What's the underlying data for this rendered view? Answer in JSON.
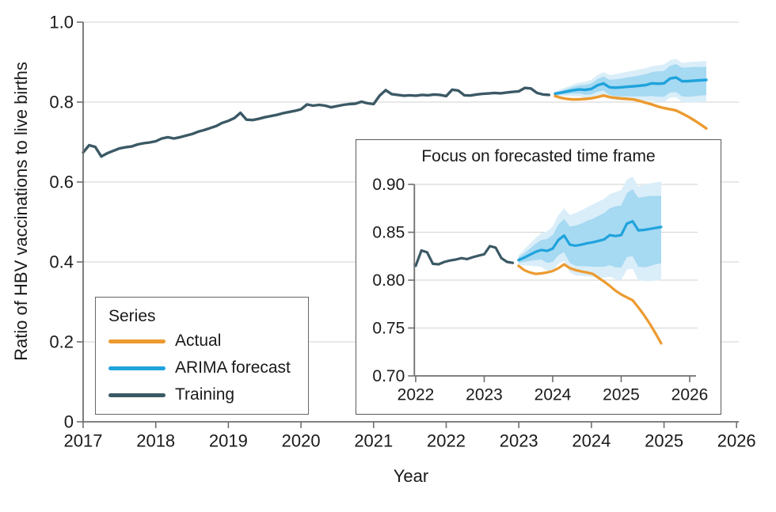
{
  "figure": {
    "ylabel": "Ratio of HBV vaccinations to live births",
    "xlabel": "Year"
  },
  "legend": {
    "title": "Series",
    "items": [
      {
        "label": "Actual",
        "color_key": "actual"
      },
      {
        "label": "ARIMA forecast",
        "color_key": "forecast"
      },
      {
        "label": "Training",
        "color_key": "training"
      }
    ]
  },
  "colors": {
    "training": "#3b5965",
    "forecast": "#1fa3dc",
    "actual": "#ec9a2f",
    "band80": "#a6d9f2",
    "band95": "#daeef9",
    "grid": "#d9d9d9",
    "axis": "#6f6f6f",
    "text": "#1a1a1a"
  },
  "chart_data": {
    "type": "line",
    "xlabel": "Year",
    "ylabel": "Ratio of HBV vaccinations to live births",
    "grid": "horizontal",
    "legend_position": "lower-left box",
    "main_view": {
      "xlim": [
        2017,
        2026.03
      ],
      "ylim": [
        0,
        1.0
      ],
      "xticks": [
        2017,
        2018,
        2019,
        2020,
        2021,
        2022,
        2023,
        2024,
        2025,
        2026
      ],
      "yticks": [
        0,
        0.2,
        0.4,
        0.6,
        0.8,
        1.0
      ],
      "ytick_labels": [
        "0",
        "0.2",
        "0.4",
        "0.6",
        "0.8",
        "1.0"
      ]
    },
    "inset_view": {
      "title": "Focus on forecasted time frame",
      "xlim": [
        2021.98,
        2026.15
      ],
      "ylim": [
        0.7,
        0.9
      ],
      "xticks": [
        2022,
        2023,
        2024,
        2025,
        2026
      ],
      "yticks": [
        0.7,
        0.75,
        0.8,
        0.85,
        0.9
      ],
      "ytick_labels": [
        "0.70",
        "0.75",
        "0.80",
        "0.85",
        "0.90"
      ]
    },
    "series": [
      {
        "name": "Training",
        "color_key": "training",
        "x_start": 2017.0,
        "x_step": 0.0833333,
        "y": [
          0.674,
          0.692,
          0.688,
          0.664,
          0.672,
          0.678,
          0.684,
          0.687,
          0.689,
          0.694,
          0.697,
          0.699,
          0.702,
          0.709,
          0.712,
          0.709,
          0.712,
          0.716,
          0.72,
          0.726,
          0.73,
          0.735,
          0.74,
          0.748,
          0.753,
          0.76,
          0.773,
          0.756,
          0.755,
          0.758,
          0.762,
          0.765,
          0.768,
          0.772,
          0.775,
          0.778,
          0.782,
          0.794,
          0.791,
          0.793,
          0.791,
          0.787,
          0.79,
          0.793,
          0.795,
          0.796,
          0.801,
          0.797,
          0.795,
          0.816,
          0.83,
          0.82,
          0.818,
          0.816,
          0.817,
          0.816,
          0.818,
          0.817,
          0.819,
          0.818,
          0.815,
          0.831,
          0.829,
          0.817,
          0.8165,
          0.819,
          0.8205,
          0.8215,
          0.823,
          0.822,
          0.824,
          0.8255,
          0.827,
          0.8355,
          0.834,
          0.823,
          0.819,
          0.818
        ]
      },
      {
        "name": "ARIMA forecast",
        "color_key": "forecast",
        "x_start": 2023.5,
        "x_step": 0.0833333,
        "y": [
          0.821,
          0.8235,
          0.8265,
          0.8295,
          0.8315,
          0.8305,
          0.833,
          0.842,
          0.8465,
          0.837,
          0.836,
          0.837,
          0.8385,
          0.8395,
          0.841,
          0.8425,
          0.847,
          0.846,
          0.847,
          0.859,
          0.8615,
          0.852,
          0.8525,
          0.8535,
          0.8545,
          0.8555
        ]
      },
      {
        "name": "Actual",
        "color_key": "actual",
        "x_start": 2023.5,
        "x_step": 0.0833333,
        "y": [
          0.815,
          0.8105,
          0.808,
          0.8065,
          0.807,
          0.808,
          0.8095,
          0.8125,
          0.8165,
          0.8125,
          0.8105,
          0.809,
          0.808,
          0.8065,
          0.8025,
          0.7985,
          0.794,
          0.789,
          0.785,
          0.782,
          0.779,
          0.7715,
          0.7635,
          0.7545,
          0.7445,
          0.734
        ]
      }
    ],
    "bands": [
      {
        "key": "ci_outer",
        "color_key": "band95",
        "x_start": 2023.5,
        "x_step": 0.0833333,
        "hi": [
          0.826,
          0.832,
          0.838,
          0.844,
          0.849,
          0.851,
          0.856,
          0.868,
          0.875,
          0.868,
          0.87,
          0.873,
          0.876,
          0.879,
          0.882,
          0.885,
          0.89,
          0.892,
          0.894,
          0.905,
          0.908,
          0.898,
          0.9,
          0.901,
          0.902,
          0.903
        ],
        "lo": [
          0.816,
          0.8155,
          0.815,
          0.8145,
          0.814,
          0.81,
          0.81,
          0.817,
          0.82,
          0.808,
          0.805,
          0.8045,
          0.804,
          0.8035,
          0.803,
          0.8025,
          0.8035,
          0.801,
          0.8,
          0.811,
          0.812,
          0.8,
          0.799,
          0.799,
          0.7995,
          0.8
        ]
      },
      {
        "key": "ci_inner",
        "color_key": "band80",
        "x_start": 2023.5,
        "x_step": 0.0833333,
        "hi": [
          0.824,
          0.828,
          0.833,
          0.838,
          0.842,
          0.843,
          0.847,
          0.858,
          0.864,
          0.856,
          0.857,
          0.859,
          0.862,
          0.864,
          0.867,
          0.87,
          0.875,
          0.877,
          0.878,
          0.891,
          0.895,
          0.886,
          0.887,
          0.888,
          0.888,
          0.888
        ],
        "lo": [
          0.818,
          0.819,
          0.82,
          0.821,
          0.8215,
          0.818,
          0.819,
          0.826,
          0.829,
          0.818,
          0.815,
          0.8145,
          0.8145,
          0.814,
          0.814,
          0.814,
          0.8155,
          0.8135,
          0.813,
          0.824,
          0.825,
          0.814,
          0.8135,
          0.8145,
          0.8165,
          0.8175
        ]
      }
    ]
  }
}
